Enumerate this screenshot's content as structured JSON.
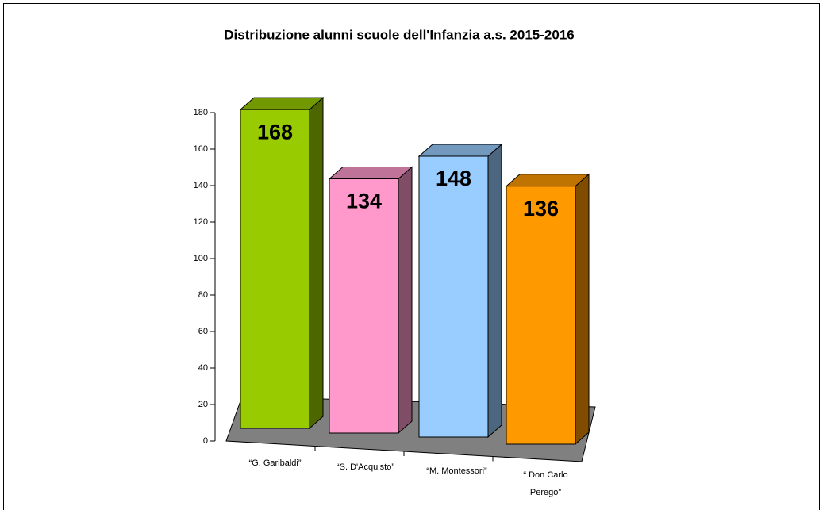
{
  "chart_data": {
    "type": "bar3d",
    "title": "Distribuzione alunni scuole dell'Infanzia a.s. 2015-2016",
    "categories": [
      "“G. Garibaldi”",
      "“S. D'Acquisto”",
      "“M. Montessori”",
      "“ Don Carlo Perego”"
    ],
    "values": [
      168,
      134,
      148,
      136
    ],
    "colors": [
      "#99cc00",
      "#ff99cc",
      "#99ccff",
      "#ff9900"
    ],
    "ylim": [
      0,
      180
    ],
    "yticks": [
      0,
      20,
      40,
      60,
      80,
      100,
      120,
      140,
      160,
      180
    ]
  }
}
